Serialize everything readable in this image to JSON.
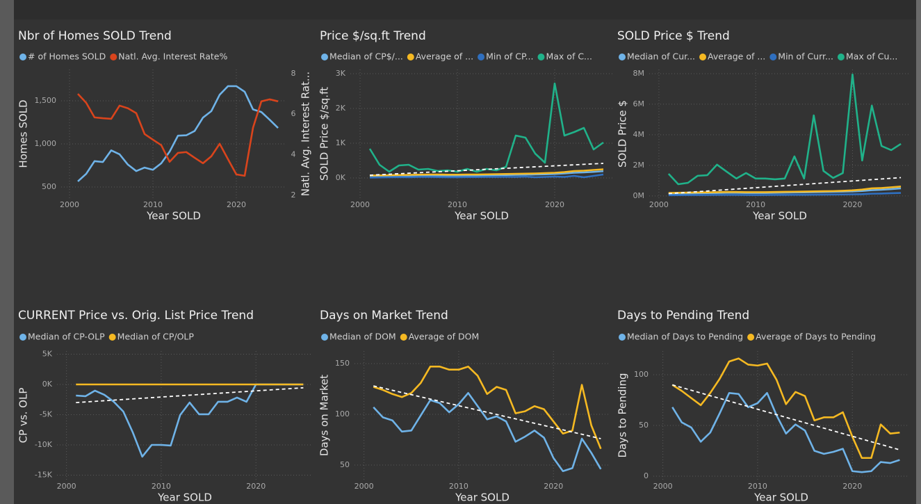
{
  "chart_data": [
    {
      "type": "line",
      "title": "Nbr of Homes SOLD Trend",
      "x_label": "Year SOLD",
      "y_label": "Homes SOLD",
      "y2_label": "Natl. Avg. Interest Rat...",
      "x": [
        2001,
        2002,
        2003,
        2004,
        2005,
        2006,
        2007,
        2008,
        2009,
        2010,
        2011,
        2012,
        2013,
        2014,
        2015,
        2016,
        2017,
        2018,
        2019,
        2020,
        2021,
        2022,
        2023,
        2024,
        2025
      ],
      "xlim": [
        1999,
        2026
      ],
      "xticks": [
        2000,
        2010,
        2020
      ],
      "ylim": [
        371,
        1863
      ],
      "yticks": [
        500,
        {
          "value": 1000,
          "label": "1,000"
        },
        {
          "value": 1500,
          "label": "1,500"
        }
      ],
      "y2lim": [
        1.86,
        8.2
      ],
      "y2ticks": [
        2,
        4,
        6,
        8
      ],
      "grid": true,
      "series": [
        {
          "name": "# of Homes SOLD",
          "color": "#6fb3e8",
          "values": [
            565,
            653,
            800,
            790,
            925,
            880,
            760,
            685,
            725,
            700,
            775,
            910,
            1095,
            1100,
            1150,
            1305,
            1380,
            1570,
            1670,
            1670,
            1605,
            1400,
            1370,
            1280,
            1185
          ]
        },
        {
          "name": "Natl. Avg. Interest Rate%",
          "color": "#d9441c",
          "axis": "y2",
          "values": [
            7.0,
            6.56,
            5.84,
            5.8,
            5.77,
            6.42,
            6.29,
            6.05,
            5.02,
            4.74,
            4.47,
            3.65,
            4.09,
            4.13,
            3.85,
            3.58,
            3.92,
            4.54,
            3.78,
            3.03,
            2.96,
            5.33,
            6.63,
            6.73,
            6.63
          ]
        }
      ]
    },
    {
      "type": "line",
      "title": "Price $/sq.ft Trend",
      "x_label": "Year SOLD",
      "y_label": "SOLD Price $/sq.ft",
      "x": [
        2001,
        2002,
        2003,
        2004,
        2005,
        2006,
        2007,
        2008,
        2009,
        2010,
        2011,
        2012,
        2013,
        2014,
        2015,
        2016,
        2017,
        2018,
        2019,
        2020,
        2021,
        2022,
        2023,
        2024,
        2025
      ],
      "xlim": [
        1999,
        2026
      ],
      "xticks": [
        2000,
        2010,
        2020
      ],
      "ylim": [
        -580,
        3120
      ],
      "yticks": [
        {
          "value": 0,
          "label": "0K"
        },
        {
          "value": 1000,
          "label": "1K"
        },
        {
          "value": 2000,
          "label": "2K"
        },
        {
          "value": 3000,
          "label": "3K"
        }
      ],
      "grid": true,
      "series": [
        {
          "name": "Median of CP$/...",
          "color": "#6fb3e8",
          "values": [
            50,
            55,
            60,
            62,
            65,
            68,
            70,
            70,
            68,
            68,
            70,
            72,
            75,
            80,
            85,
            90,
            95,
            100,
            105,
            115,
            130,
            150,
            160,
            175,
            195
          ]
        },
        {
          "name": "Average of ...",
          "color": "#f5b922",
          "values": [
            70,
            75,
            80,
            85,
            90,
            95,
            100,
            100,
            95,
            95,
            100,
            100,
            105,
            110,
            115,
            120,
            125,
            130,
            140,
            150,
            170,
            200,
            210,
            230,
            250
          ]
        },
        {
          "name": "Min of CP...",
          "color": "#2f6fbf",
          "values": [
            10,
            15,
            20,
            25,
            20,
            30,
            30,
            25,
            20,
            20,
            25,
            25,
            30,
            30,
            35,
            30,
            40,
            20,
            30,
            40,
            30,
            60,
            20,
            60,
            100
          ]
        },
        {
          "name": "Max of C...",
          "color": "#20b28a",
          "values": [
            840,
            380,
            180,
            360,
            380,
            240,
            260,
            200,
            220,
            180,
            260,
            180,
            260,
            220,
            320,
            1220,
            1160,
            700,
            440,
            2720,
            1220,
            1320,
            1440,
            820,
            1020
          ]
        }
      ],
      "trendline": {
        "x": [
          2001,
          2025
        ],
        "values": [
          80,
          420
        ]
      }
    },
    {
      "type": "line",
      "title": "SOLD Price $ Trend",
      "x_label": "Year SOLD",
      "y_label": "SOLD Price $",
      "x": [
        2001,
        2002,
        2003,
        2004,
        2005,
        2006,
        2007,
        2008,
        2009,
        2010,
        2011,
        2012,
        2013,
        2014,
        2015,
        2016,
        2017,
        2018,
        2019,
        2020,
        2021,
        2022,
        2023,
        2024,
        2025
      ],
      "xlim": [
        1999,
        2026
      ],
      "xticks": [
        2000,
        2010,
        2020
      ],
      "ylim": [
        -140000,
        8270000
      ],
      "yticks": [
        {
          "value": 0,
          "label": "0M"
        },
        {
          "value": 2000000,
          "label": "2M"
        },
        {
          "value": 4000000,
          "label": "4M"
        },
        {
          "value": 6000000,
          "label": "6M"
        },
        {
          "value": 8000000,
          "label": "8M"
        }
      ],
      "grid": true,
      "series": [
        {
          "name": "Median of Cur...",
          "color": "#6fb3e8",
          "values": [
            150000,
            160000,
            170000,
            180000,
            190000,
            200000,
            210000,
            210000,
            200000,
            200000,
            200000,
            210000,
            220000,
            230000,
            240000,
            250000,
            260000,
            270000,
            280000,
            300000,
            330000,
            380000,
            410000,
            450000,
            500000
          ]
        },
        {
          "name": "Average of ...",
          "color": "#f5b922",
          "values": [
            200000,
            210000,
            220000,
            230000,
            240000,
            250000,
            260000,
            260000,
            250000,
            250000,
            250000,
            260000,
            270000,
            280000,
            290000,
            300000,
            310000,
            320000,
            340000,
            370000,
            420000,
            500000,
            520000,
            570000,
            620000
          ]
        },
        {
          "name": "Min of Curr...",
          "color": "#2f6fbf",
          "values": [
            50000,
            55000,
            60000,
            60000,
            65000,
            70000,
            70000,
            70000,
            65000,
            60000,
            65000,
            70000,
            75000,
            80000,
            80000,
            85000,
            90000,
            95000,
            100000,
            110000,
            120000,
            150000,
            160000,
            180000,
            200000
          ]
        },
        {
          "name": "Max of Cu...",
          "color": "#20b28a",
          "values": [
            1450000,
            770000,
            860000,
            1320000,
            1360000,
            2050000,
            1590000,
            1140000,
            1500000,
            1140000,
            1140000,
            1090000,
            1140000,
            2590000,
            1140000,
            5270000,
            1640000,
            1180000,
            1500000,
            7950000,
            2320000,
            5910000,
            3270000,
            3000000,
            3410000
          ]
        }
      ],
      "trendline": {
        "x": [
          2001,
          2025
        ],
        "values": [
          150000,
          1200000
        ]
      }
    },
    {
      "type": "line",
      "title": "CURRENT Price vs. Orig. List Price Trend",
      "x_label": "Year SOLD",
      "y_label": "CP vs. OLP",
      "x": [
        2001,
        2002,
        2003,
        2004,
        2005,
        2006,
        2007,
        2008,
        2009,
        2010,
        2011,
        2012,
        2013,
        2014,
        2015,
        2016,
        2017,
        2018,
        2019,
        2020,
        2021,
        2022,
        2023,
        2024,
        2025
      ],
      "xlim": [
        1999,
        2026
      ],
      "xticks": [
        2000,
        2010,
        2020
      ],
      "ylim": [
        -15750,
        5520
      ],
      "yticks": [
        {
          "value": -15000,
          "label": "-15K"
        },
        {
          "value": -10000,
          "label": "-10K"
        },
        {
          "value": -5000,
          "label": "-5K"
        },
        {
          "value": 0,
          "label": "0K"
        },
        {
          "value": 5000,
          "label": "5K"
        }
      ],
      "grid": true,
      "series": [
        {
          "name": "Median of CP-OLP",
          "color": "#6fb3e8",
          "values": [
            -1840,
            -1950,
            -1030,
            -1720,
            -2870,
            -4480,
            -7930,
            -11950,
            -10000,
            -10000,
            -10110,
            -5060,
            -2990,
            -4940,
            -4940,
            -2870,
            -2870,
            -2180,
            -2870,
            0,
            0,
            0,
            0,
            0,
            0
          ]
        },
        {
          "name": "Median of CP/OLP",
          "color": "#f5b922",
          "values": [
            1,
            1,
            1,
            1,
            1,
            1,
            1,
            1,
            1,
            1,
            1,
            1,
            1,
            1,
            1,
            1,
            1,
            1,
            1,
            1,
            1,
            1,
            1,
            1,
            1
          ]
        }
      ],
      "trendline": {
        "x": [
          2001,
          2025
        ],
        "values": [
          -3000,
          -550
        ]
      }
    },
    {
      "type": "line",
      "title": "Days on Market Trend",
      "x_label": "Year SOLD",
      "y_label": "Days on Market",
      "x": [
        2001,
        2002,
        2003,
        2004,
        2005,
        2006,
        2007,
        2008,
        2009,
        2010,
        2011,
        2012,
        2013,
        2014,
        2015,
        2016,
        2017,
        2018,
        2019,
        2020,
        2021,
        2022,
        2023,
        2024,
        2025
      ],
      "xlim": [
        1999,
        2026
      ],
      "xticks": [
        2000,
        2010,
        2020
      ],
      "ylim": [
        35.6,
        162.3
      ],
      "yticks": [
        50,
        100,
        150
      ],
      "grid": true,
      "series": [
        {
          "name": "Median of DOM",
          "color": "#6fb3e8",
          "values": [
            107,
            97,
            94,
            83,
            84,
            99,
            114,
            111,
            102,
            110,
            121,
            108,
            95,
            98,
            93,
            73,
            78,
            84,
            77,
            57,
            44,
            47,
            76,
            62,
            46
          ]
        },
        {
          "name": "Average of DOM",
          "color": "#f5b922",
          "values": [
            127,
            124,
            120,
            117,
            121,
            131,
            147,
            147,
            144,
            144,
            147,
            138,
            120,
            127,
            124,
            101,
            103,
            108,
            105,
            93,
            81,
            84,
            129,
            89,
            66
          ]
        }
      ],
      "trendline": {
        "x": [
          2001,
          2025
        ],
        "values": [
          128,
          76
        ]
      }
    },
    {
      "type": "line",
      "title": "Days to Pending Trend",
      "x_label": "Year SOLD",
      "y_label": "Days to Pending",
      "x": [
        2001,
        2002,
        2003,
        2004,
        2005,
        2006,
        2007,
        2008,
        2009,
        2010,
        2011,
        2012,
        2013,
        2014,
        2015,
        2016,
        2017,
        2018,
        2019,
        2020,
        2021,
        2022,
        2023,
        2024,
        2025
      ],
      "xlim": [
        1999,
        2026
      ],
      "xticks": [
        2000,
        2010,
        2020
      ],
      "ylim": [
        -3.4,
        123.3
      ],
      "yticks": [
        0,
        50,
        100
      ],
      "grid": true,
      "series": [
        {
          "name": "Median of Days to Pending",
          "color": "#6fb3e8",
          "values": [
            68,
            53,
            48,
            34,
            43,
            62,
            82,
            81,
            68,
            72,
            82,
            60,
            42,
            51,
            45,
            25,
            22,
            24,
            27,
            5,
            4,
            5,
            14,
            13,
            16
          ]
        },
        {
          "name": "Average of Days to Pending",
          "color": "#f5b922",
          "values": [
            90,
            84,
            77,
            70,
            82,
            96,
            113,
            116,
            110,
            109,
            111,
            95,
            71,
            83,
            79,
            55,
            58,
            58,
            63,
            39,
            18,
            18,
            51,
            42,
            43
          ]
        }
      ],
      "trendline": {
        "x": [
          2001,
          2025
        ],
        "values": [
          90,
          26
        ]
      }
    }
  ]
}
